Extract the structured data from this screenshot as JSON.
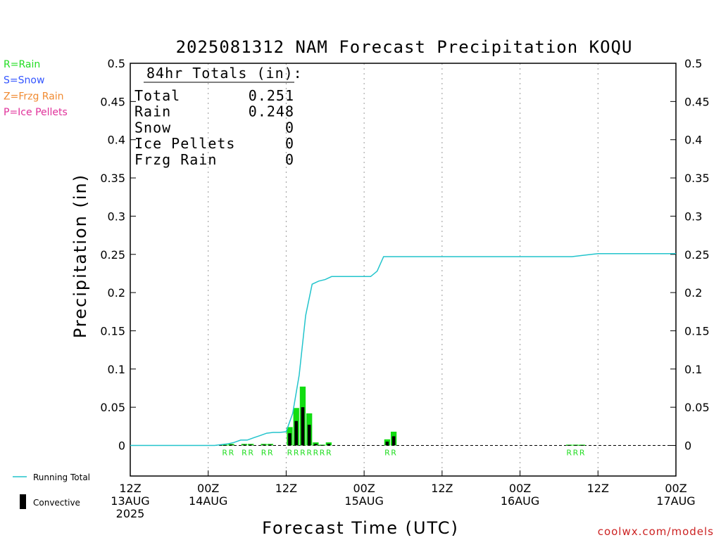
{
  "chart_data": {
    "type": "bar",
    "title": "2025081312 NAM Forecast Precipitation KOQU",
    "ylabel": "Precipitation (in)",
    "xlabel": "Forecast Time (UTC)",
    "ylim": [
      -0.04,
      0.5
    ],
    "y_ticks": [
      "0.5",
      "0.45",
      "0.4",
      "0.35",
      "0.3",
      "0.25",
      "0.2",
      "0.15",
      "0.1",
      "0.05",
      "0"
    ],
    "x_range_hours": [
      0,
      84
    ],
    "x_ticks": [
      {
        "hour": 0,
        "l1": "12Z",
        "l2": "13AUG",
        "l3": "2025"
      },
      {
        "hour": 12,
        "l1": "00Z",
        "l2": "14AUG",
        "l3": ""
      },
      {
        "hour": 24,
        "l1": "12Z",
        "l2": "",
        "l3": ""
      },
      {
        "hour": 36,
        "l1": "00Z",
        "l2": "15AUG",
        "l3": ""
      },
      {
        "hour": 48,
        "l1": "12Z",
        "l2": "",
        "l3": ""
      },
      {
        "hour": 60,
        "l1": "00Z",
        "l2": "16AUG",
        "l3": ""
      },
      {
        "hour": 72,
        "l1": "12Z",
        "l2": "",
        "l3": ""
      },
      {
        "hour": 84,
        "l1": "00Z",
        "l2": "17AUG",
        "l3": ""
      }
    ],
    "grid": "vertical-dotted",
    "totals": {
      "header": "84hr Totals (in):",
      "rows": [
        {
          "label": "Total",
          "value": "0.251"
        },
        {
          "label": "Rain",
          "value": "0.248"
        },
        {
          "label": "Snow",
          "value": "0"
        },
        {
          "label": "Ice Pellets",
          "value": "0"
        },
        {
          "label": "Frzg Rain",
          "value": "0"
        }
      ]
    },
    "precip_legend": [
      {
        "text": "R=Rain",
        "color": "#22dd22"
      },
      {
        "text": "S=Snow",
        "color": "#3355ff"
      },
      {
        "text": "Z=Frzg Rain",
        "color": "#f08a30"
      },
      {
        "text": "P=Ice Pellets",
        "color": "#e0309a"
      }
    ],
    "series": [
      {
        "name": "Running Total",
        "kind": "line",
        "color": "#22c4cc",
        "x": [
          0,
          13,
          14,
          15,
          16,
          17,
          18,
          19,
          20,
          21,
          22,
          23,
          24,
          25,
          26,
          27,
          28,
          29,
          30,
          31,
          32,
          33,
          34,
          35,
          36,
          37,
          38,
          39,
          40,
          41,
          42,
          54,
          68,
          71,
          72,
          84
        ],
        "y": [
          0,
          0,
          0.001,
          0.002,
          0.004,
          0.007,
          0.007,
          0.01,
          0.013,
          0.016,
          0.017,
          0.017,
          0.018,
          0.042,
          0.092,
          0.17,
          0.211,
          0.215,
          0.217,
          0.221,
          0.221,
          0.221,
          0.221,
          0.221,
          0.221,
          0.221,
          0.228,
          0.247,
          0.247,
          0.247,
          0.247,
          0.247,
          0.247,
          0.25,
          0.251,
          0.251
        ]
      },
      {
        "name": "Precipitation",
        "kind": "bar",
        "color": "#11dd11",
        "x": [
          15,
          16,
          18,
          19,
          21,
          22,
          25,
          26,
          27,
          28,
          29,
          30,
          31,
          40,
          41,
          68,
          69,
          70
        ],
        "values": [
          0.001,
          0.002,
          0.002,
          0.002,
          0.002,
          0.002,
          0.024,
          0.049,
          0.077,
          0.042,
          0.004,
          0.001,
          0.004,
          0.008,
          0.018,
          0.001,
          0.001,
          0.001
        ],
        "convective": [
          0.0005,
          0.001,
          0.001,
          0.001,
          0.001,
          0.001,
          0.016,
          0.032,
          0.05,
          0.027,
          0.002,
          0.0005,
          0.002,
          0.005,
          0.012,
          0.0005,
          0.0005,
          0.0005
        ],
        "ptype": [
          "R",
          "R",
          "R",
          "R",
          "R",
          "R",
          "R",
          "R",
          "R",
          "R",
          "R",
          "R",
          "R",
          "R",
          "R",
          "R",
          "R",
          "R"
        ]
      }
    ],
    "legend": [
      {
        "name": "Running Total",
        "color": "#22c4cc",
        "symbol": "line"
      },
      {
        "name": "Convective",
        "color": "#000000",
        "symbol": "bar"
      }
    ]
  },
  "credit": {
    "text": "coolwx.com/models",
    "color": "#cc2222"
  }
}
